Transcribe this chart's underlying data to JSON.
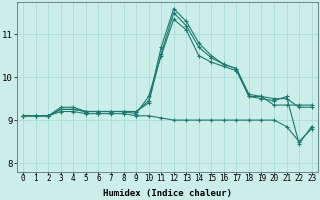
{
  "xlabel": "Humidex (Indice chaleur)",
  "ylabel": "",
  "background_color": "#cceee8",
  "grid_color": "#aaddda",
  "line_color": "#1a7a6e",
  "xlim": [
    -0.5,
    23.5
  ],
  "ylim": [
    7.8,
    11.75
  ],
  "yticks": [
    8,
    9,
    10,
    11
  ],
  "xticks": [
    0,
    1,
    2,
    3,
    4,
    5,
    6,
    7,
    8,
    9,
    10,
    11,
    12,
    13,
    14,
    15,
    16,
    17,
    18,
    19,
    20,
    21,
    22,
    23
  ],
  "lines": [
    {
      "x": [
        0,
        1,
        2,
        3,
        4,
        5,
        6,
        7,
        8,
        9,
        10,
        11,
        12,
        13,
        14,
        15,
        16,
        17,
        18,
        19,
        20,
        21,
        22,
        23
      ],
      "y": [
        9.1,
        9.1,
        9.1,
        9.2,
        9.2,
        9.15,
        9.15,
        9.15,
        9.15,
        9.1,
        9.1,
        9.05,
        9.0,
        9.0,
        9.0,
        9.0,
        9.0,
        9.0,
        9.0,
        9.0,
        9.0,
        8.85,
        8.5,
        8.8
      ]
    },
    {
      "x": [
        0,
        1,
        2,
        3,
        4,
        5,
        6,
        7,
        8,
        9,
        10,
        11,
        12,
        13,
        14,
        15,
        16,
        17,
        18,
        19,
        20,
        21,
        22,
        23
      ],
      "y": [
        9.1,
        9.1,
        9.1,
        9.25,
        9.25,
        9.2,
        9.2,
        9.2,
        9.2,
        9.15,
        9.55,
        10.5,
        11.35,
        11.1,
        10.5,
        10.35,
        10.25,
        10.15,
        9.55,
        9.55,
        9.35,
        9.35,
        9.35,
        9.35
      ]
    },
    {
      "x": [
        0,
        1,
        2,
        3,
        4,
        5,
        6,
        7,
        8,
        9,
        10,
        11,
        12,
        13,
        14,
        15,
        16,
        17,
        18,
        19,
        20,
        21,
        22,
        23
      ],
      "y": [
        9.1,
        9.1,
        9.1,
        9.3,
        9.3,
        9.2,
        9.2,
        9.2,
        9.2,
        9.2,
        9.4,
        10.55,
        11.5,
        11.2,
        10.7,
        10.45,
        10.3,
        10.2,
        9.6,
        9.55,
        9.5,
        9.5,
        9.3,
        9.3
      ]
    },
    {
      "x": [
        0,
        1,
        2,
        3,
        4,
        5,
        6,
        7,
        8,
        9,
        10,
        11,
        12,
        13,
        14,
        15,
        16,
        17,
        18,
        19,
        20,
        21,
        22,
        23
      ],
      "y": [
        9.1,
        9.1,
        9.1,
        9.25,
        9.25,
        9.2,
        9.2,
        9.2,
        9.2,
        9.2,
        9.45,
        10.7,
        11.6,
        11.3,
        10.8,
        10.5,
        10.3,
        10.2,
        9.55,
        9.5,
        9.45,
        9.55,
        8.45,
        8.85
      ]
    }
  ],
  "xtick_fontsize": 5.5,
  "ytick_fontsize": 6.5,
  "xlabel_fontsize": 6.5
}
